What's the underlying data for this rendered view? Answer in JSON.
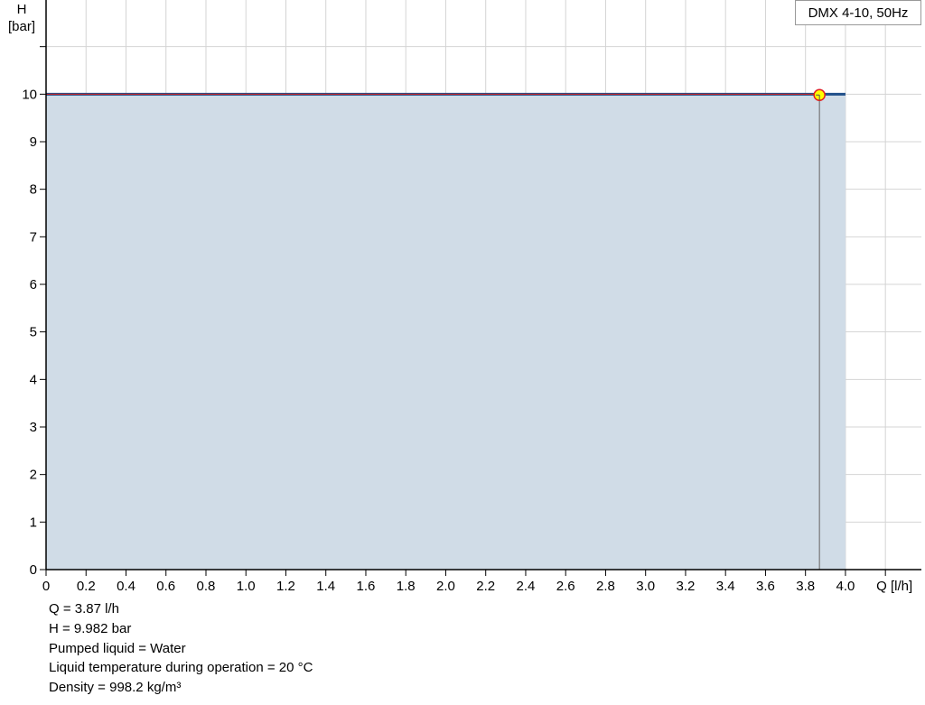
{
  "chart_data": {
    "type": "area",
    "title": "",
    "xlabel": "Q [l/h]",
    "ylabel_line1": "H",
    "ylabel_line2": "[bar]",
    "xlim": [
      0,
      4.38
    ],
    "ylim": [
      0,
      12
    ],
    "x_ticks": [
      "0",
      "0.2",
      "0.4",
      "0.6",
      "0.8",
      "1.0",
      "1.2",
      "1.4",
      "1.6",
      "1.8",
      "2.0",
      "2.2",
      "2.4",
      "2.6",
      "2.8",
      "3.0",
      "3.2",
      "3.4",
      "3.6",
      "3.8",
      "4.0"
    ],
    "y_ticks": [
      "0",
      "1",
      "2",
      "3",
      "4",
      "5",
      "6",
      "7",
      "8",
      "9",
      "10"
    ],
    "grid": true,
    "legend": {
      "label": "DMX 4-10, 50Hz",
      "placement": "top-right"
    },
    "series": [
      {
        "name": "DMX 4-10, 50Hz",
        "x": [
          0,
          4.0
        ],
        "y": [
          10,
          10
        ],
        "color": "#1f4e89",
        "fill": "#d0dce7"
      }
    ],
    "duty_point": {
      "x": 3.87,
      "y": 9.982,
      "fill": "#ffff00",
      "stroke": "#e02020"
    }
  },
  "info": {
    "lines": [
      "Q = 3.87 l/h",
      "H = 9.982 bar",
      "Pumped liquid = Water",
      "Liquid temperature during operation = 20 °C",
      "Density = 998.2 kg/m³"
    ]
  }
}
